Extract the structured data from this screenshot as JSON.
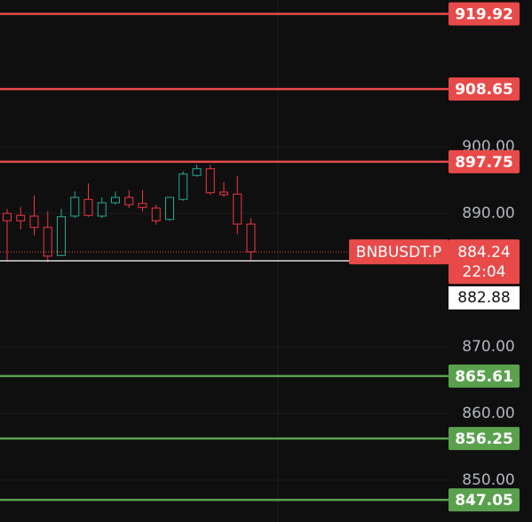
{
  "chart_data": {
    "type": "candlestick",
    "ylim": [
      843.73,
      922
    ],
    "yticks": [
      {
        "value": 850,
        "label": "850.00"
      },
      {
        "value": 860,
        "label": "860.00"
      },
      {
        "value": 870,
        "label": "870.00"
      },
      {
        "value": 890,
        "label": "890.00"
      },
      {
        "value": 900,
        "label": "900.00"
      }
    ],
    "grid": true,
    "up_color": "#22ab94",
    "down_color": "#f23645",
    "open": [
      890.0,
      889.7,
      889.6,
      887.9,
      883.7,
      889.6,
      892.1,
      889.6,
      891.6,
      892.4,
      891.5,
      890.8,
      889.1,
      892.1,
      895.7,
      896.7,
      893.2,
      892.9,
      888.4
    ],
    "high": [
      890.7,
      891.0,
      892.7,
      890.3,
      890.7,
      893.3,
      894.5,
      892.4,
      893.3,
      893.5,
      893.5,
      891.3,
      892.4,
      896.3,
      897.3,
      897.3,
      894.7,
      895.6,
      889.3
    ],
    "low": [
      882.9,
      887.6,
      886.7,
      882.7,
      883.6,
      889.3,
      889.5,
      889.3,
      891.3,
      890.8,
      890.3,
      888.3,
      888.9,
      891.9,
      895.5,
      892.8,
      892.5,
      886.9,
      882.9
    ],
    "close": [
      888.9,
      888.9,
      887.9,
      883.6,
      889.5,
      892.4,
      889.7,
      891.6,
      892.4,
      891.3,
      890.9,
      888.9,
      892.4,
      895.9,
      896.7,
      893.1,
      892.8,
      888.4,
      884.24
    ],
    "levels": [
      {
        "value": 919.92,
        "color": "#e84a4a"
      },
      {
        "value": 908.65,
        "color": "#e84a4a"
      },
      {
        "value": 897.75,
        "color": "#e84a4a"
      },
      {
        "value": 865.61,
        "color": "#5aa14e"
      },
      {
        "value": 856.25,
        "color": "#5aa14e"
      },
      {
        "value": 847.05,
        "color": "#5aa14e"
      }
    ],
    "last_price": {
      "symbol": "BNBUSDT.P",
      "value": 884.24,
      "countdown": "22:04",
      "color": "#e84a4a"
    },
    "mark_price": 882.88
  }
}
